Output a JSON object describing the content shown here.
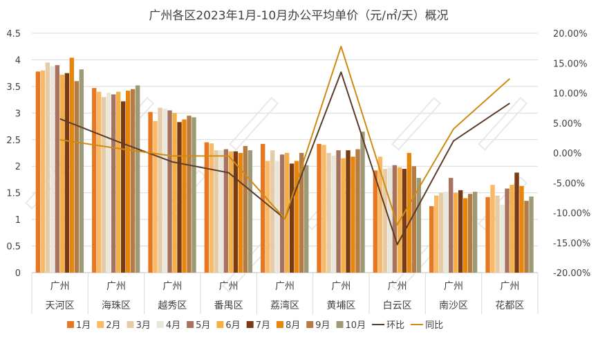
{
  "chart_data": {
    "type": "bar",
    "title": "广州各区2023年1月-10月办公平均单价（元/㎡/天）概况",
    "categories": [
      {
        "top": "广州",
        "bottom": "天河区"
      },
      {
        "top": "广州",
        "bottom": "海珠区"
      },
      {
        "top": "广州",
        "bottom": "越秀区"
      },
      {
        "top": "广州",
        "bottom": "番禺区"
      },
      {
        "top": "广州",
        "bottom": "荔湾区"
      },
      {
        "top": "广州",
        "bottom": "黄埔区"
      },
      {
        "top": "广州",
        "bottom": "白云区"
      },
      {
        "top": "广州",
        "bottom": "南沙区"
      },
      {
        "top": "广州",
        "bottom": "花都区"
      }
    ],
    "y_left": {
      "min": 0,
      "max": 4.5,
      "step": 0.5,
      "ticks": [
        "0",
        "0.5",
        "1",
        "1.5",
        "2",
        "2.5",
        "3",
        "3.5",
        "4",
        "4.5"
      ]
    },
    "y_right": {
      "min": -20,
      "max": 20,
      "step": 5,
      "ticks": [
        "-20.00%",
        "-15.00%",
        "-10.00%",
        "-5.00%",
        "0.00%",
        "5.00%",
        "10.00%",
        "15.00%",
        "20.00%"
      ]
    },
    "series": [
      {
        "name": "1月",
        "color": "#e87722",
        "values": [
          3.78,
          3.47,
          3.02,
          2.45,
          2.42,
          2.42,
          1.92,
          1.25,
          1.42
        ]
      },
      {
        "name": "2月",
        "color": "#f9b966",
        "values": [
          3.8,
          3.4,
          2.85,
          2.43,
          2.1,
          2.4,
          2.18,
          1.45,
          1.65
        ]
      },
      {
        "name": "3月",
        "color": "#e6cba8",
        "values": [
          3.95,
          3.3,
          3.1,
          2.3,
          2.3,
          2.25,
          1.95,
          1.5,
          1.45
        ]
      },
      {
        "name": "4月",
        "color": "#e9e6dc",
        "values": [
          3.88,
          3.38,
          3.08,
          2.3,
          2.1,
          2.2,
          1.98,
          1.52,
          1.28
        ]
      },
      {
        "name": "5月",
        "color": "#a87260",
        "values": [
          3.9,
          3.35,
          3.05,
          2.32,
          2.22,
          2.3,
          2.02,
          1.78,
          1.58
        ]
      },
      {
        "name": "6月",
        "color": "#f4b046",
        "values": [
          3.72,
          3.4,
          3.0,
          2.28,
          2.25,
          2.15,
          1.98,
          1.5,
          1.65
        ]
      },
      {
        "name": "7月",
        "color": "#7a3b12",
        "values": [
          3.75,
          3.22,
          2.83,
          2.28,
          2.05,
          2.3,
          1.95,
          1.55,
          1.88
        ]
      },
      {
        "name": "8月",
        "color": "#e8860b",
        "values": [
          4.04,
          3.42,
          2.88,
          2.25,
          2.1,
          2.18,
          2.25,
          1.4,
          1.63
        ]
      },
      {
        "name": "9月",
        "color": "#b37c45",
        "values": [
          3.6,
          3.45,
          2.95,
          2.38,
          2.25,
          2.32,
          2.0,
          1.48,
          1.35
        ]
      },
      {
        "name": "10月",
        "color": "#9e9a78",
        "values": [
          3.82,
          3.52,
          2.92,
          2.3,
          2.02,
          2.65,
          1.78,
          1.52,
          1.43
        ]
      }
    ],
    "line_series": [
      {
        "name": "环比",
        "color": "#5a3a28",
        "values": [
          5.7,
          2.0,
          -1.5,
          -3.3,
          -11.0,
          13.5,
          -15.3,
          2.0,
          8.3
        ]
      },
      {
        "name": "同比",
        "color": "#cf8a12",
        "values": [
          2.2,
          0.8,
          -0.5,
          -0.5,
          -11.0,
          17.8,
          -12.0,
          4.0,
          12.4
        ]
      }
    ],
    "grid": "horizontal",
    "legend": "bottom"
  }
}
